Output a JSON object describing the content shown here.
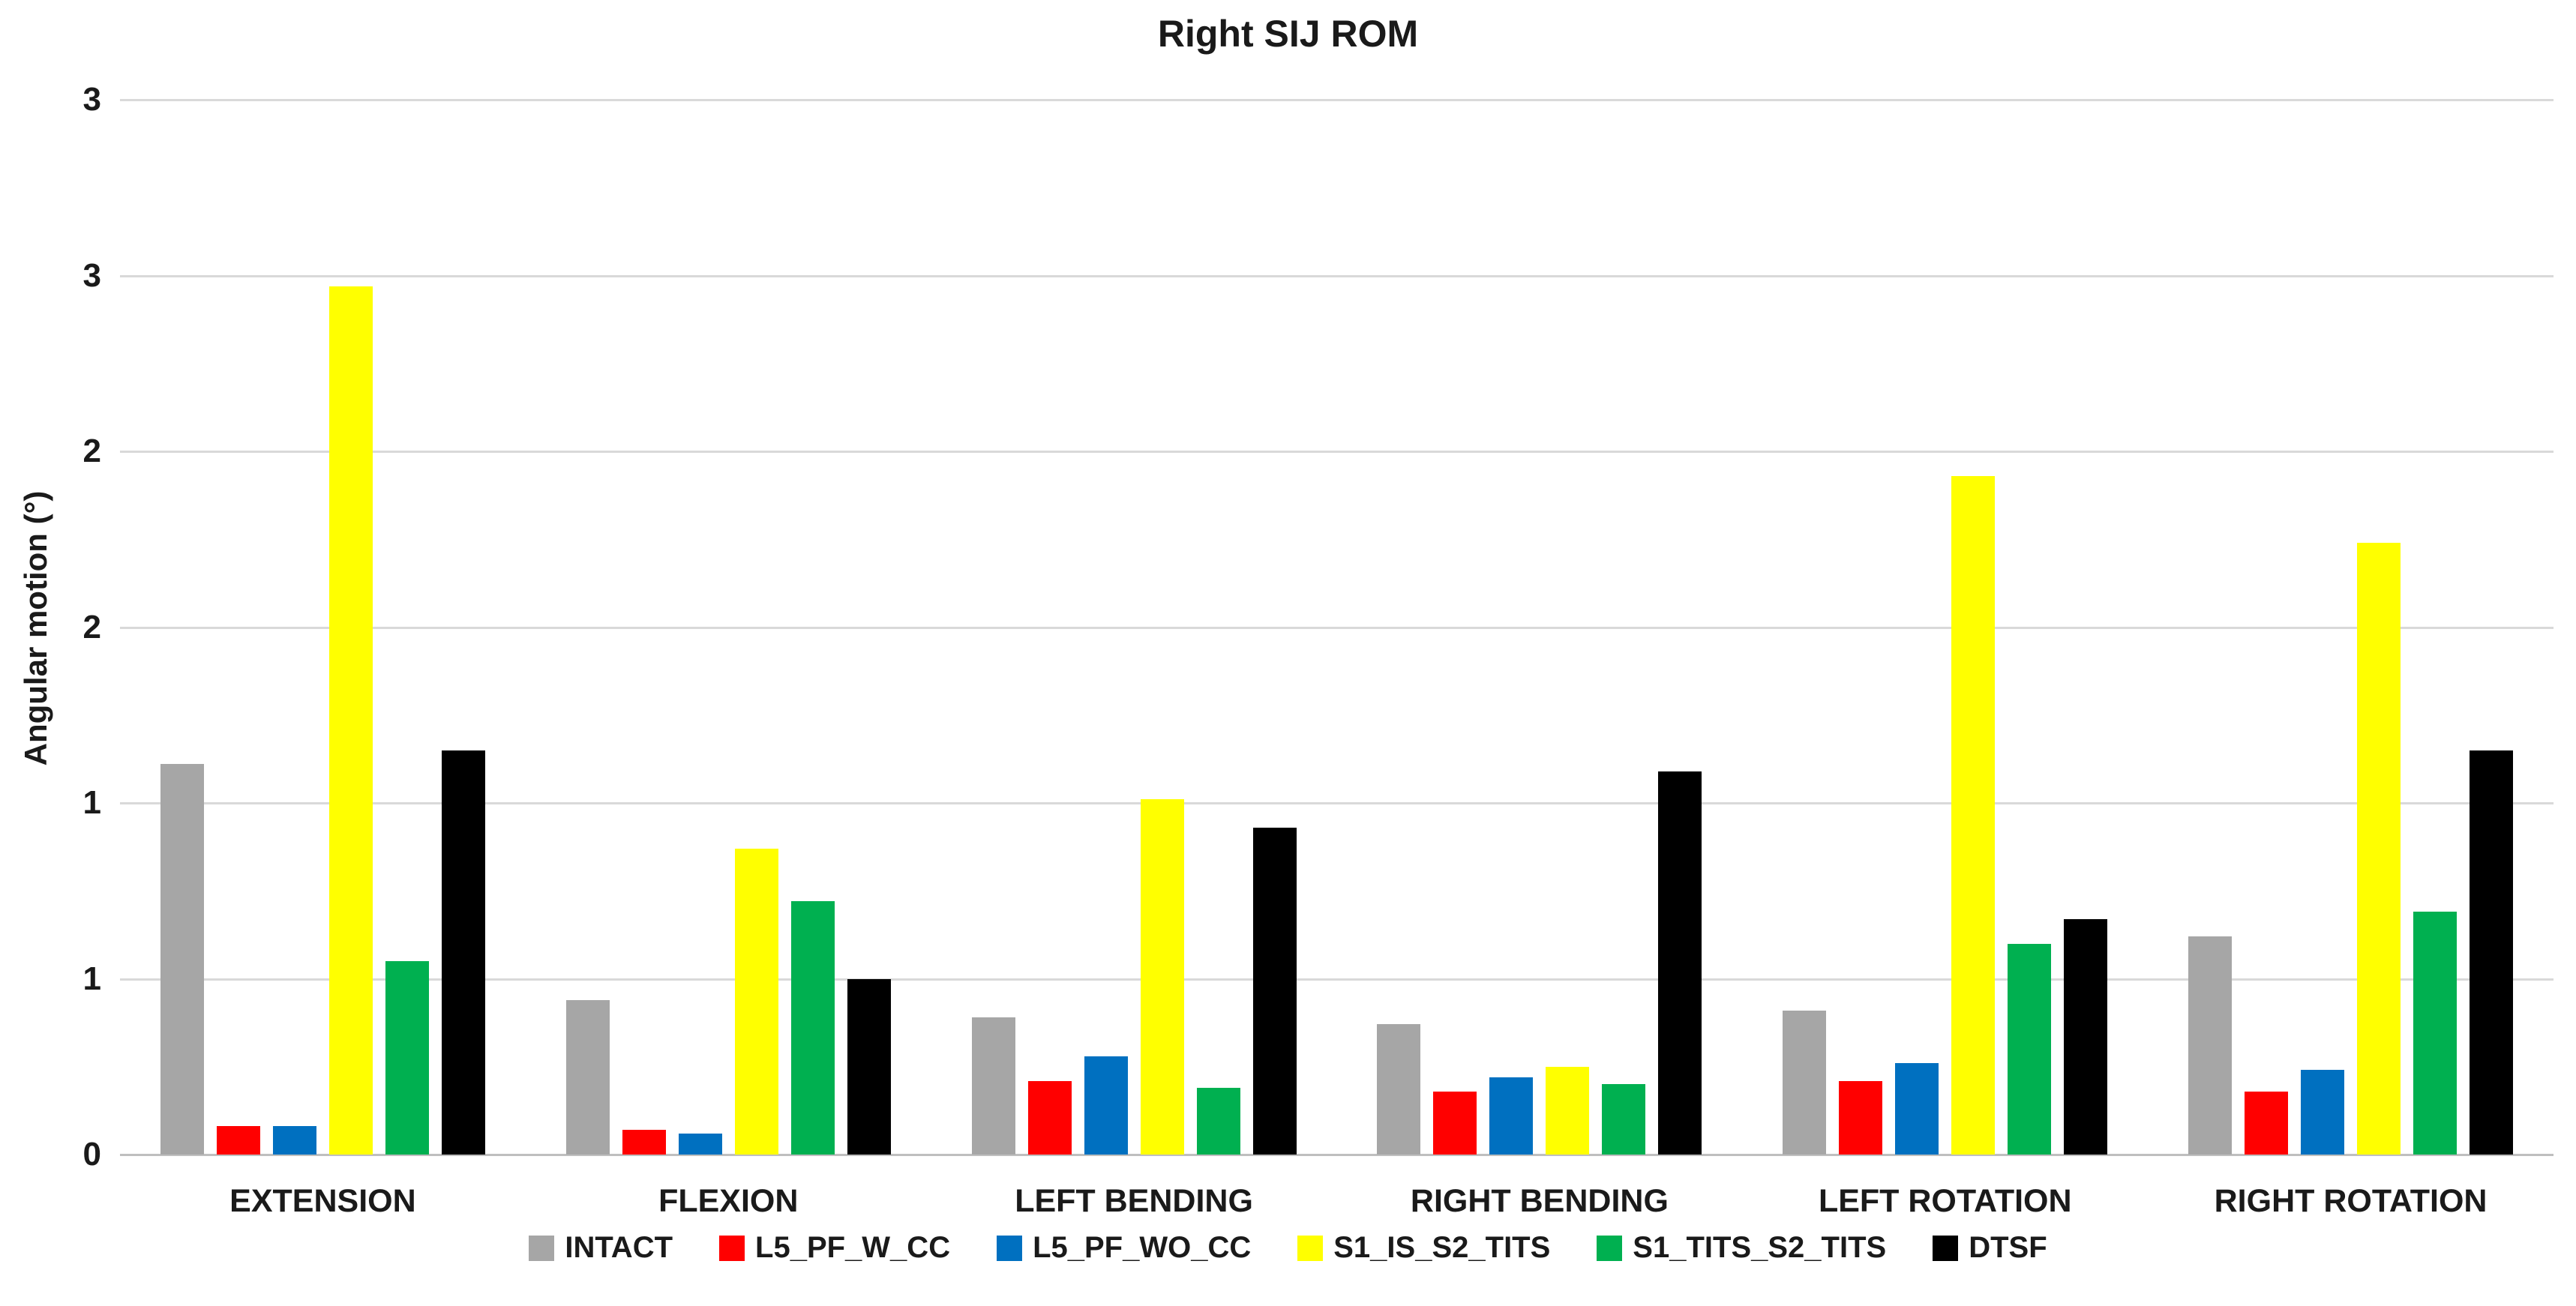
{
  "title": "Right SIJ ROM",
  "y_axis": {
    "label": "Angular motion (°)",
    "ticks": [
      {
        "value": 3.0,
        "label": "3"
      },
      {
        "value": 2.5,
        "label": "3"
      },
      {
        "value": 2.0,
        "label": "2"
      },
      {
        "value": 1.5,
        "label": "2"
      },
      {
        "value": 1.0,
        "label": "1"
      },
      {
        "value": 0.5,
        "label": "1"
      },
      {
        "value": 0.0,
        "label": "0"
      }
    ]
  },
  "chart_data": {
    "type": "bar",
    "title": "Right SIJ ROM",
    "xlabel": "",
    "ylabel": "Angular motion (°)",
    "ylim": [
      0,
      3
    ],
    "gridline_step": 0.5,
    "grid": true,
    "legend_position": "bottom",
    "categories": [
      "EXTENSION",
      "FLEXION",
      "LEFT BENDING",
      "RIGHT BENDING",
      "LEFT ROTATION",
      "RIGHT ROTATION"
    ],
    "series": [
      {
        "name": "INTACT",
        "color": "#A6A6A6",
        "values": [
          1.11,
          0.44,
          0.39,
          0.37,
          0.41,
          0.62
        ]
      },
      {
        "name": "L5_PF_W_CC",
        "color": "#FF0000",
        "values": [
          0.08,
          0.07,
          0.21,
          0.18,
          0.21,
          0.18
        ]
      },
      {
        "name": "L5_PF_WO_CC",
        "color": "#0070C0",
        "values": [
          0.08,
          0.06,
          0.28,
          0.22,
          0.26,
          0.24
        ]
      },
      {
        "name": "S1_IS_S2_TITS",
        "color": "#FFFF00",
        "values": [
          2.47,
          0.87,
          1.01,
          0.25,
          1.93,
          1.74
        ]
      },
      {
        "name": "S1_TITS_S2_TITS",
        "color": "#00B050",
        "values": [
          0.55,
          0.72,
          0.19,
          0.2,
          0.6,
          0.69
        ]
      },
      {
        "name": "DTSF",
        "color": "#000000",
        "values": [
          1.15,
          0.5,
          0.93,
          1.09,
          0.67,
          1.15
        ]
      }
    ],
    "colors": {
      "gridline": "#D9D9D9",
      "axis_line": "#BFBFBF",
      "text": "#1A1A1A"
    }
  }
}
